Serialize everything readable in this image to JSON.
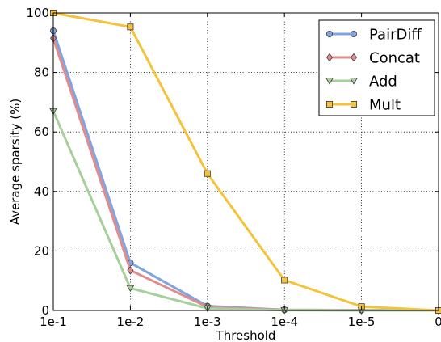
{
  "chart_data": {
    "type": "line",
    "xlabel": "Threshold",
    "ylabel": "Average sparsity (%)",
    "x": [
      "1e-1",
      "1e-2",
      "1e-3",
      "1e-4",
      "1e-5",
      "0"
    ],
    "yticks": [
      "0",
      "20",
      "40",
      "60",
      "80",
      "100"
    ],
    "ylim": [
      0,
      100
    ],
    "grid": true,
    "legend_position": "top-right",
    "series": [
      {
        "name": "PairDiff",
        "color": "#7fa4df",
        "marker": "circle",
        "values": [
          94,
          16,
          1.5,
          0.2,
          0.1,
          0
        ]
      },
      {
        "name": "Concat",
        "color": "#e08c8c",
        "marker": "diamond",
        "values": [
          91.5,
          13.5,
          1.2,
          0.2,
          0.1,
          0
        ]
      },
      {
        "name": "Add",
        "color": "#a6cf9b",
        "marker": "triangle-down",
        "values": [
          67,
          7.5,
          0.7,
          0.1,
          0.0,
          0
        ]
      },
      {
        "name": "Mult",
        "color": "#f5c33b",
        "marker": "square",
        "values": [
          100,
          95.3,
          46,
          10.2,
          1.3,
          0
        ]
      }
    ]
  }
}
